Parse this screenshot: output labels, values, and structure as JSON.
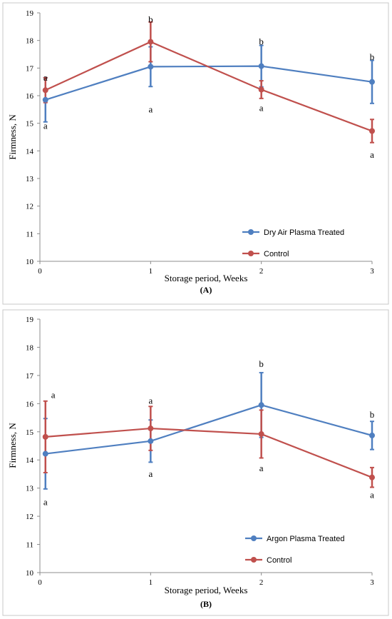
{
  "chart_data": [
    {
      "type": "line",
      "panel_label": "(A)",
      "xlabel": "Storage period, Weeks",
      "ylabel": "Firmness, N",
      "xlim": [
        0,
        3
      ],
      "ylim": [
        10,
        19
      ],
      "x_ticks": [
        "0",
        "1",
        "2",
        "3"
      ],
      "y_ticks": [
        "10",
        "11",
        "12",
        "13",
        "14",
        "15",
        "16",
        "17",
        "18",
        "19"
      ],
      "legend_position": "bottom-right",
      "grid": false,
      "series": [
        {
          "name": "Dry Air Plasma Treated",
          "color": "#4f7fc0",
          "x": [
            0.05,
            1,
            2,
            3
          ],
          "y": [
            15.85,
            17.05,
            17.07,
            16.5
          ],
          "err": [
            0.8,
            0.72,
            0.75,
            0.78
          ]
        },
        {
          "name": "Control",
          "color": "#c0504d",
          "x": [
            0.05,
            1,
            2,
            3
          ],
          "y": [
            16.2,
            17.95,
            16.22,
            14.72
          ],
          "err": [
            0.45,
            0.72,
            0.32,
            0.42
          ]
        }
      ],
      "annotations": [
        {
          "text": "a",
          "x": 0.05,
          "y": 16.65
        },
        {
          "text": "a",
          "x": 0.05,
          "y": 14.9
        },
        {
          "text": "b",
          "x": 1,
          "y": 18.75
        },
        {
          "text": "a",
          "x": 1,
          "y": 15.5
        },
        {
          "text": "b",
          "x": 2,
          "y": 17.95
        },
        {
          "text": "a",
          "x": 2,
          "y": 15.55
        },
        {
          "text": "b",
          "x": 3,
          "y": 17.4
        },
        {
          "text": "a",
          "x": 3,
          "y": 13.85
        }
      ]
    },
    {
      "type": "line",
      "panel_label": "(B)",
      "xlabel": "Storage period, Weeks",
      "ylabel": "Firmness, N",
      "xlim": [
        0,
        3
      ],
      "ylim": [
        10,
        19
      ],
      "x_ticks": [
        "0",
        "1",
        "2",
        "3"
      ],
      "y_ticks": [
        "10",
        "11",
        "12",
        "13",
        "14",
        "15",
        "16",
        "17",
        "18",
        "19"
      ],
      "legend_position": "bottom-right",
      "grid": false,
      "series": [
        {
          "name": "Argon Plasma Treated",
          "color": "#4f7fc0",
          "x": [
            0.05,
            1,
            2,
            3
          ],
          "y": [
            14.22,
            14.67,
            15.95,
            14.87
          ],
          "err": [
            1.25,
            0.75,
            1.15,
            0.5
          ]
        },
        {
          "name": "Control",
          "color": "#c0504d",
          "x": [
            0.05,
            1,
            2,
            3
          ],
          "y": [
            14.82,
            15.12,
            14.92,
            13.38
          ],
          "err": [
            1.27,
            0.78,
            0.85,
            0.35
          ]
        }
      ],
      "annotations": [
        {
          "text": "a",
          "x": 0.12,
          "y": 16.3
        },
        {
          "text": "a",
          "x": 0.05,
          "y": 12.5
        },
        {
          "text": "a",
          "x": 1,
          "y": 16.1
        },
        {
          "text": "a",
          "x": 1,
          "y": 13.5
        },
        {
          "text": "b",
          "x": 2,
          "y": 17.4
        },
        {
          "text": "a",
          "x": 2,
          "y": 13.7
        },
        {
          "text": "b",
          "x": 3,
          "y": 15.6
        },
        {
          "text": "a",
          "x": 3,
          "y": 12.75
        }
      ]
    }
  ]
}
